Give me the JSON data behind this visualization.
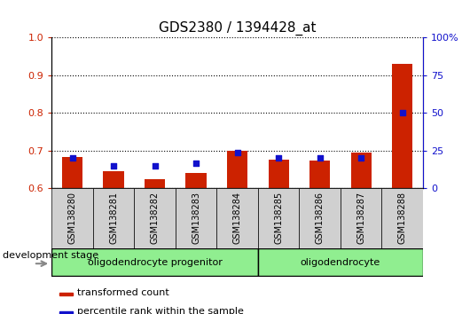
{
  "title": "GDS2380 / 1394428_at",
  "samples": [
    "GSM138280",
    "GSM138281",
    "GSM138282",
    "GSM138283",
    "GSM138284",
    "GSM138285",
    "GSM138286",
    "GSM138287",
    "GSM138288"
  ],
  "transformed_count": [
    0.683,
    0.645,
    0.624,
    0.64,
    0.7,
    0.676,
    0.674,
    0.694,
    0.93
  ],
  "percentile_rank": [
    20,
    15,
    15,
    17,
    24,
    20,
    20,
    20,
    50
  ],
  "ylim_left": [
    0.6,
    1.0
  ],
  "ylim_right": [
    0,
    100
  ],
  "yticks_left": [
    0.6,
    0.7,
    0.8,
    0.9,
    1.0
  ],
  "yticks_right": [
    0,
    25,
    50,
    75,
    100
  ],
  "ytick_right_labels": [
    "0",
    "25",
    "50",
    "75",
    "100%"
  ],
  "bar_color": "#cc2200",
  "dot_color": "#1111cc",
  "groups": [
    {
      "label": "oligodendrocyte progenitor",
      "start": 0,
      "end": 4,
      "color": "#90ee90"
    },
    {
      "label": "oligodendrocyte",
      "start": 5,
      "end": 8,
      "color": "#90ee90"
    }
  ],
  "group_label_prefix": "development stage",
  "legend_items": [
    {
      "label": "transformed count",
      "color": "#cc2200"
    },
    {
      "label": "percentile rank within the sample",
      "color": "#1111cc"
    }
  ],
  "title_fontsize": 11,
  "tick_fontsize": 8,
  "bar_width": 0.5,
  "tick_bg_color": "#d0d0d0",
  "spine_color": "#000000"
}
